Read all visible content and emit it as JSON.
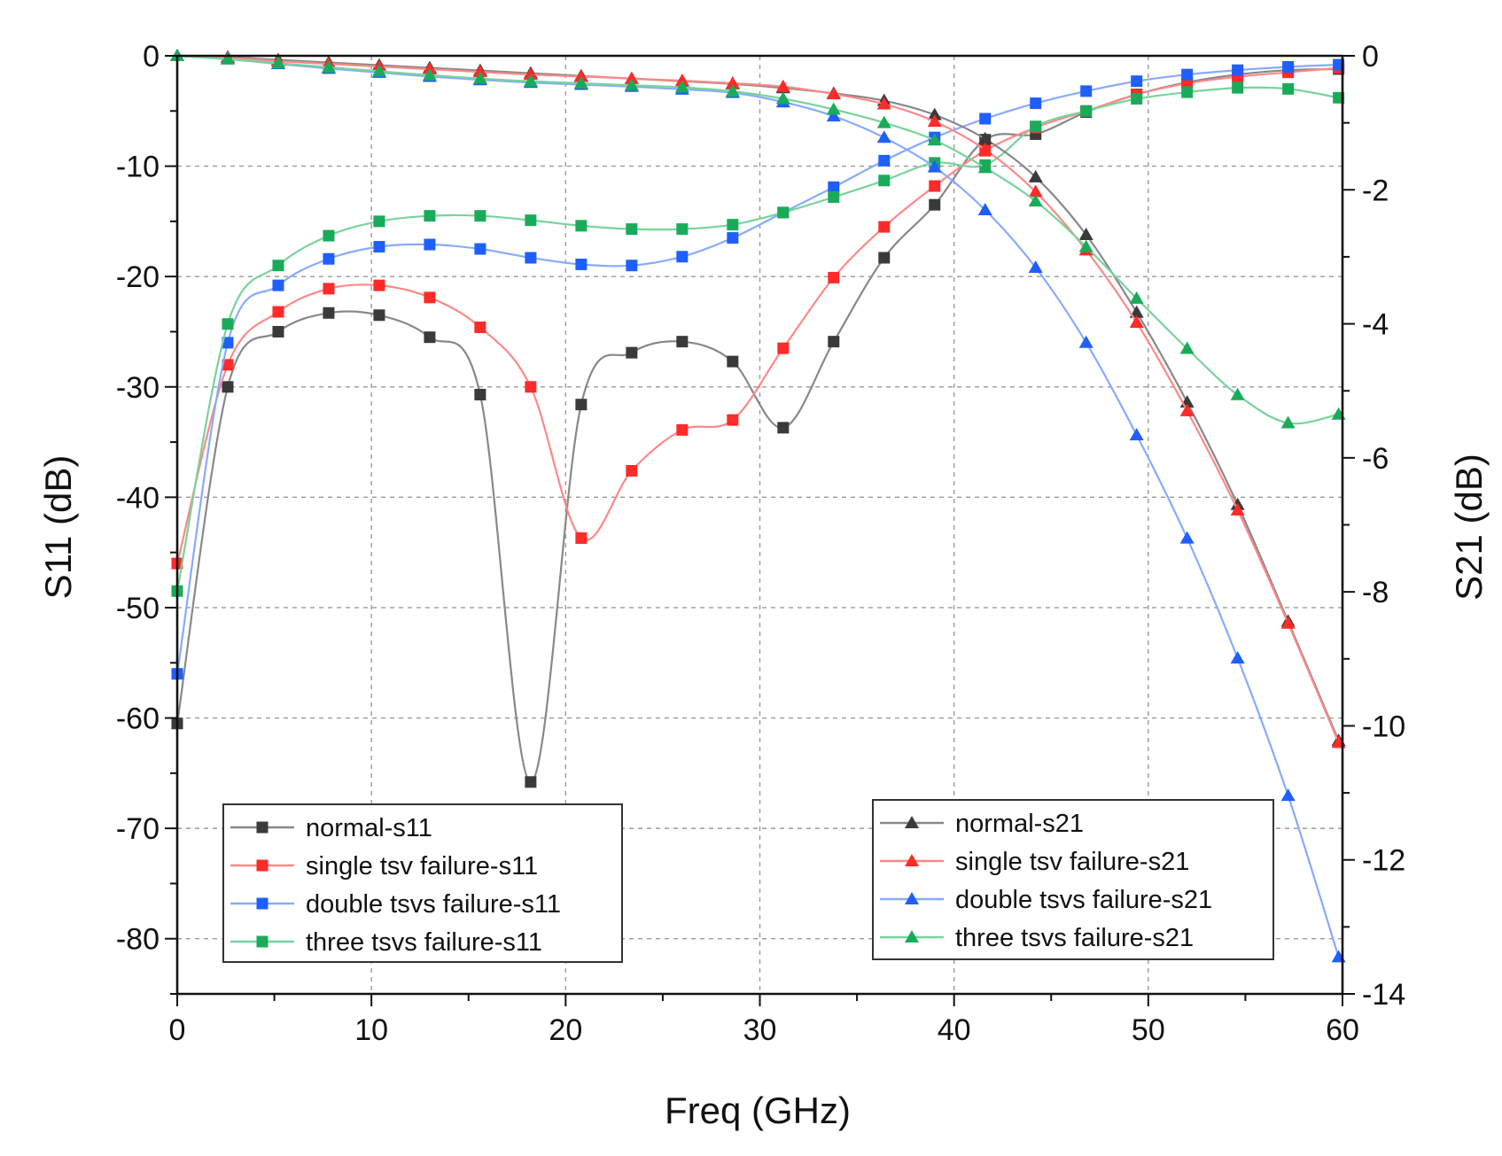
{
  "chart_data": {
    "type": "line",
    "title": "",
    "xlabel": "Freq (GHz)",
    "ylabel_left": "S11 (dB)",
    "ylabel_right": "S21 (dB)",
    "xlim": [
      0,
      60
    ],
    "ylim_left": [
      -85,
      0
    ],
    "ylim_right": [
      -14,
      0
    ],
    "x_ticks": [
      "0",
      "10",
      "20",
      "30",
      "40",
      "50",
      "60"
    ],
    "y_left_ticks": [
      "0",
      "-10",
      "-20",
      "-30",
      "-40",
      "-50",
      "-60",
      "-70",
      "-80"
    ],
    "y_right_ticks": [
      "0",
      "-2",
      "-4",
      "-6",
      "-8",
      "-10",
      "-12",
      "-14"
    ],
    "grid": true,
    "colors": {
      "normal": "#3a3a3a",
      "single": "#ff2a2a",
      "double": "#1f5fff",
      "three": "#1aab5a",
      "normal_line": "#888888",
      "single_line": "#ff8888",
      "double_line": "#88aaff",
      "three_line": "#77d49a"
    },
    "legend_s11": {
      "placement": "bottom-left",
      "entries": [
        "normal-s11",
        "single tsv failure-s11",
        "double tsvs failure-s11",
        "three tsvs failure-s11"
      ]
    },
    "legend_s21": {
      "placement": "bottom-right",
      "entries": [
        "normal-s21",
        "single tsv failure-s21",
        "double tsvs failure-s21",
        "three tsvs failure-s21"
      ]
    },
    "series": [
      {
        "name": "normal-s11",
        "axis": "left",
        "marker": "square",
        "color_key": "normal",
        "x": [
          0,
          2.6,
          5.2,
          7.8,
          10.4,
          13,
          15.6,
          18.2,
          20.8,
          23.4,
          26,
          28.6,
          31.2,
          33.8,
          36.4,
          39,
          41.6,
          44.2,
          46.8,
          49.4,
          52,
          54.6,
          57.2,
          59.8
        ],
        "y": [
          -60.5,
          -30,
          -25,
          -23.3,
          -23.5,
          -25.5,
          -30.7,
          -65.8,
          -31.6,
          -26.9,
          -25.9,
          -27.7,
          -33.7,
          -25.9,
          -18.3,
          -13.5,
          -7.6,
          -7.1,
          -5.1,
          -3.5,
          -2.4,
          -1.7,
          -1.3,
          -1.2
        ]
      },
      {
        "name": "single tsv failure-s11",
        "axis": "left",
        "marker": "square",
        "color_key": "single",
        "x": [
          0,
          2.6,
          5.2,
          7.8,
          10.4,
          13,
          15.6,
          18.2,
          20.8,
          23.4,
          26,
          28.6,
          31.2,
          33.8,
          36.4,
          39,
          41.6,
          44.2,
          46.8,
          49.4,
          52,
          54.6,
          57.2,
          59.8
        ],
        "y": [
          -46,
          -28,
          -23.2,
          -21.1,
          -20.8,
          -21.9,
          -24.6,
          -30,
          -43.7,
          -37.6,
          -33.9,
          -33,
          -26.5,
          -20.1,
          -15.5,
          -11.8,
          -8.6,
          -6.5,
          -5,
          -3.5,
          -2.5,
          -1.9,
          -1.5,
          -1.1
        ]
      },
      {
        "name": "double tsvs failure-s11",
        "axis": "left",
        "marker": "square",
        "color_key": "double",
        "x": [
          0,
          2.6,
          5.2,
          7.8,
          10.4,
          13,
          15.6,
          18.2,
          20.8,
          23.4,
          26,
          28.6,
          31.2,
          33.8,
          36.4,
          39,
          41.6,
          44.2,
          46.8,
          49.4,
          52,
          54.6,
          57.2,
          59.8
        ],
        "y": [
          -56,
          -26,
          -20.8,
          -18.4,
          -17.3,
          -17.1,
          -17.5,
          -18.3,
          -18.9,
          -19,
          -18.2,
          -16.5,
          -14.2,
          -11.9,
          -9.5,
          -7.4,
          -5.7,
          -4.3,
          -3.2,
          -2.3,
          -1.7,
          -1.3,
          -1,
          -0.8
        ]
      },
      {
        "name": "three tsvs failure-s11",
        "axis": "left",
        "marker": "square",
        "color_key": "three",
        "x": [
          0,
          2.6,
          5.2,
          7.8,
          10.4,
          13,
          15.6,
          18.2,
          20.8,
          23.4,
          26,
          28.6,
          31.2,
          33.8,
          36.4,
          39,
          41.6,
          44.2,
          46.8,
          49.4,
          52,
          54.6,
          57.2,
          59.8
        ],
        "y": [
          -48.5,
          -24.3,
          -19,
          -16.3,
          -15,
          -14.5,
          -14.5,
          -14.9,
          -15.4,
          -15.7,
          -15.7,
          -15.3,
          -14.2,
          -12.8,
          -11.3,
          -9.7,
          -9.9,
          -6.4,
          -5,
          -3.9,
          -3.3,
          -2.9,
          -3,
          -3.8
        ]
      },
      {
        "name": "normal-s21",
        "axis": "right",
        "marker": "triangle",
        "color_key": "normal",
        "x": [
          0,
          2.6,
          5.2,
          7.8,
          10.4,
          13,
          15.6,
          18.2,
          20.8,
          23.4,
          26,
          28.6,
          31.2,
          33.8,
          36.4,
          39,
          41.6,
          44.2,
          46.8,
          49.4,
          52,
          54.6,
          57.2,
          59.8
        ],
        "y": [
          0,
          -0.02,
          -0.06,
          -0.1,
          -0.14,
          -0.18,
          -0.22,
          -0.26,
          -0.3,
          -0.34,
          -0.38,
          -0.42,
          -0.48,
          -0.56,
          -0.67,
          -0.88,
          -1.24,
          -1.81,
          -2.67,
          -3.83,
          -5.17,
          -6.7,
          -8.44,
          -10.22
        ]
      },
      {
        "name": "single tsv failure-s21",
        "axis": "right",
        "marker": "triangle",
        "color_key": "single",
        "x": [
          0,
          2.6,
          5.2,
          7.8,
          10.4,
          13,
          15.6,
          18.2,
          20.8,
          23.4,
          26,
          28.6,
          31.2,
          33.8,
          36.4,
          39,
          41.6,
          44.2,
          46.8,
          49.4,
          52,
          54.6,
          57.2,
          59.8
        ],
        "y": [
          0,
          -0.03,
          -0.08,
          -0.12,
          -0.16,
          -0.2,
          -0.24,
          -0.28,
          -0.31,
          -0.34,
          -0.37,
          -0.41,
          -0.46,
          -0.57,
          -0.72,
          -0.98,
          -1.4,
          -2.03,
          -2.9,
          -3.98,
          -5.3,
          -6.78,
          -8.47,
          -10.25
        ]
      },
      {
        "name": "double tsvs failure-s21",
        "axis": "right",
        "marker": "triangle",
        "color_key": "double",
        "x": [
          0,
          2.6,
          5.2,
          7.8,
          10.4,
          13,
          15.6,
          18.2,
          20.8,
          23.4,
          26,
          28.6,
          31.2,
          33.8,
          36.4,
          39,
          41.6,
          44.2,
          46.8,
          49.4,
          52,
          54.6,
          57.2,
          59.8
        ],
        "y": [
          0,
          -0.05,
          -0.12,
          -0.19,
          -0.25,
          -0.31,
          -0.36,
          -0.4,
          -0.43,
          -0.46,
          -0.5,
          -0.55,
          -0.69,
          -0.9,
          -1.22,
          -1.66,
          -2.3,
          -3.16,
          -4.28,
          -5.66,
          -7.2,
          -8.99,
          -11.04,
          -13.45
        ]
      },
      {
        "name": "three tsvs failure-s21",
        "axis": "right",
        "marker": "triangle",
        "color_key": "three",
        "x": [
          0,
          2.6,
          5.2,
          7.8,
          10.4,
          13,
          15.6,
          18.2,
          20.8,
          23.4,
          26,
          28.6,
          31.2,
          33.8,
          36.4,
          39,
          41.6,
          44.2,
          46.8,
          49.4,
          52,
          54.6,
          57.2,
          59.8
        ],
        "y": [
          0,
          -0.05,
          -0.11,
          -0.17,
          -0.23,
          -0.29,
          -0.34,
          -0.38,
          -0.41,
          -0.44,
          -0.47,
          -0.53,
          -0.64,
          -0.8,
          -1.0,
          -1.26,
          -1.67,
          -2.17,
          -2.85,
          -3.62,
          -4.37,
          -5.06,
          -5.48,
          -5.35
        ]
      }
    ]
  }
}
